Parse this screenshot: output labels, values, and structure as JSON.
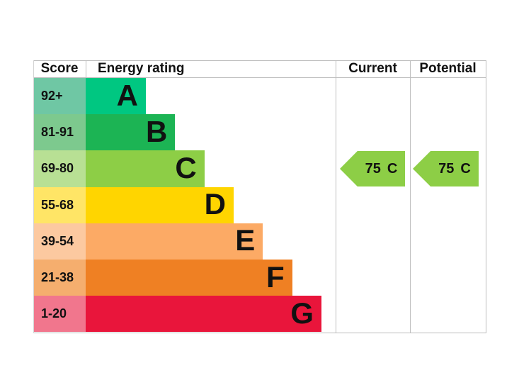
{
  "chart_data": {
    "type": "bar",
    "subtype": "epc-energy-rating-chart",
    "headers": {
      "score": "Score",
      "energy_rating": "Energy rating",
      "current": "Current",
      "potential": "Potential"
    },
    "bands": [
      {
        "letter": "A",
        "score": "92+",
        "color": "#00c781",
        "tint": "#6fc7a4"
      },
      {
        "letter": "B",
        "score": "81-91",
        "color": "#1cb454",
        "tint": "#7dc98e"
      },
      {
        "letter": "C",
        "score": "69-80",
        "color": "#8dce46",
        "tint": "#b8e094"
      },
      {
        "letter": "D",
        "score": "55-68",
        "color": "#ffd500",
        "tint": "#ffe566"
      },
      {
        "letter": "E",
        "score": "39-54",
        "color": "#fcaa65",
        "tint": "#fcc9a0"
      },
      {
        "letter": "F",
        "score": "21-38",
        "color": "#ef8023",
        "tint": "#f5ae6e"
      },
      {
        "letter": "G",
        "score": "1-20",
        "color": "#e9153b",
        "tint": "#f1768d"
      }
    ],
    "current": {
      "value": "75",
      "band": "C",
      "arrow_color": "#8dce46"
    },
    "potential": {
      "value": "75",
      "band": "C",
      "arrow_color": "#8dce46"
    },
    "layout_hints": {
      "legend_position": "none",
      "grid": "table-borders",
      "bar_direction": "horizontal-staircase"
    }
  }
}
